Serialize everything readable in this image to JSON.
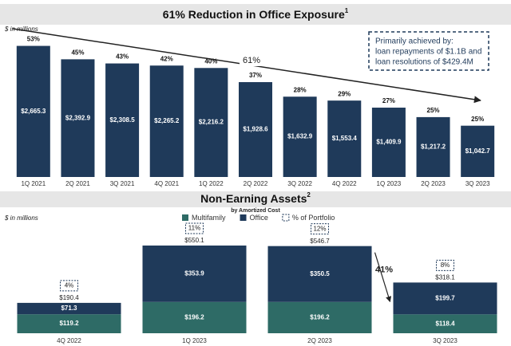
{
  "chart_data": [
    {
      "type": "bar",
      "title": "61% Reduction in Office Exposure",
      "title_superscript": "1",
      "axis_note": "$ in millions",
      "categories": [
        "1Q 2021",
        "2Q 2021",
        "3Q 2021",
        "4Q 2021",
        "1Q 2022",
        "2Q 2022",
        "3Q 2022",
        "4Q 2022",
        "1Q 2023",
        "2Q 2023",
        "3Q 2023"
      ],
      "values": [
        2665.3,
        2392.9,
        2308.5,
        2265.2,
        2216.2,
        1928.6,
        1632.9,
        1553.4,
        1409.9,
        1217.2,
        1042.7
      ],
      "value_labels": [
        "$2,665.3",
        "$2,392.9",
        "$2,308.5",
        "$2,265.2",
        "$2,216.2",
        "$1,928.6",
        "$1,632.9",
        "$1,553.4",
        "$1,409.9",
        "$1,217.2",
        "$1,042.7"
      ],
      "percent_labels": [
        "53%",
        "45%",
        "43%",
        "42%",
        "40%",
        "37%",
        "28%",
        "29%",
        "27%",
        "25%",
        "25%"
      ],
      "color": "#1f3a5a",
      "ylim": [
        0,
        2950
      ],
      "trend_label": "61%",
      "callout": [
        "Primarily achieved by:",
        "loan repayments of $1.1B and",
        "loan resolutions of $429.4M"
      ]
    },
    {
      "type": "stacked_bar",
      "title": "Non-Earning Assets",
      "title_superscript": "2",
      "subtitle": "by Amortized Cost",
      "axis_note": "$ in millions",
      "categories": [
        "4Q 2022",
        "1Q 2023",
        "2Q 2023",
        "3Q 2023"
      ],
      "series": [
        {
          "name": "Multifamily",
          "color": "#2e6b66",
          "values": [
            119.2,
            196.2,
            196.2,
            118.4
          ],
          "value_labels": [
            "$119.2",
            "$196.2",
            "$196.2",
            "$118.4"
          ]
        },
        {
          "name": "Office",
          "color": "#1f3a5a",
          "values": [
            71.3,
            353.9,
            350.5,
            199.7
          ],
          "value_labels": [
            "$71.3",
            "$353.9",
            "$350.5",
            "$199.7"
          ]
        }
      ],
      "totals": [
        190.4,
        550.1,
        546.7,
        318.1
      ],
      "total_labels": [
        "$190.4",
        "$550.1",
        "$546.7",
        "$318.1"
      ],
      "percent_labels": [
        "4%",
        "11%",
        "12%",
        "8%"
      ],
      "percent_legend": "% of Portfolio",
      "change_label": "41%",
      "ylim": [
        0,
        600
      ]
    }
  ]
}
